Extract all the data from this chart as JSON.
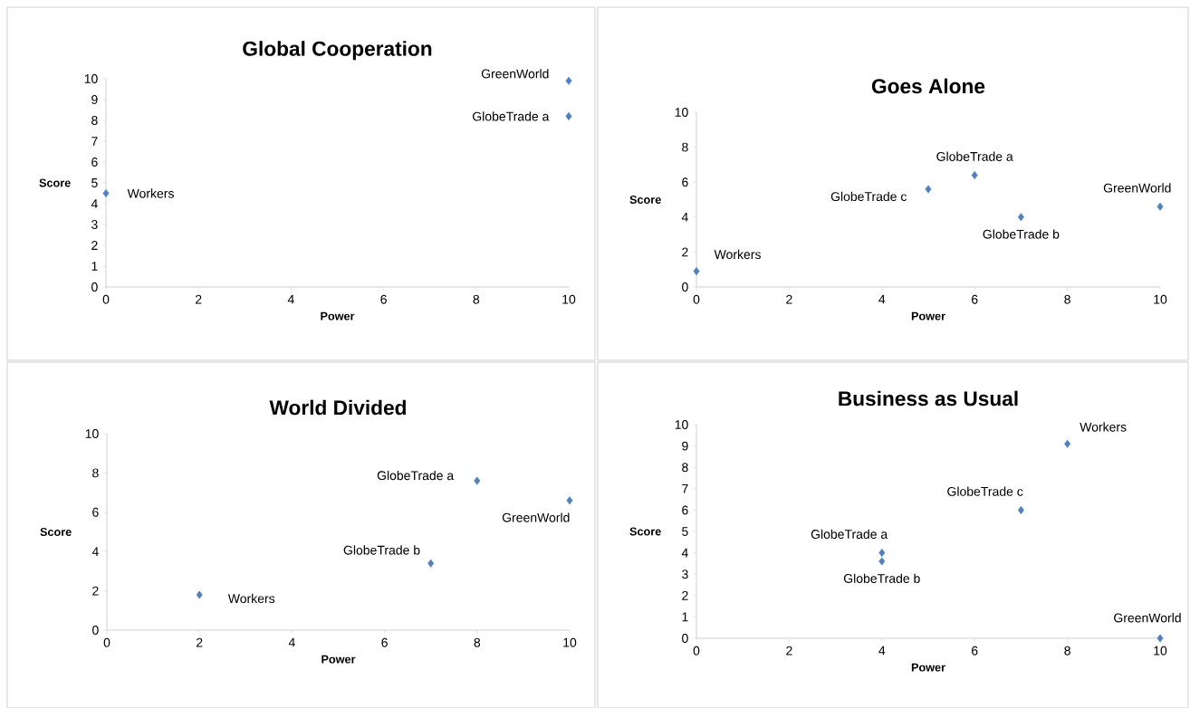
{
  "chart_data": [
    {
      "type": "scatter",
      "title": "Global Cooperation",
      "xlabel": "Power",
      "ylabel": "Score",
      "xlim": [
        0,
        10
      ],
      "ylim": [
        0,
        10
      ],
      "xticks": [
        0,
        2,
        4,
        6,
        8,
        10
      ],
      "yticks": [
        0,
        1,
        2,
        3,
        4,
        5,
        6,
        7,
        8,
        9,
        10
      ],
      "marker": "diamond",
      "color": "#4f81bd",
      "x": [
        0,
        10,
        10
      ],
      "values": [
        4.5,
        9.9,
        8.2
      ],
      "annotations": [
        {
          "text": "Workers",
          "x": 0,
          "y": 4.5
        },
        {
          "text": "GreenWorld",
          "x": 10,
          "y": 9.9
        },
        {
          "text": "GlobeTrade a",
          "x": 10,
          "y": 8.2
        }
      ]
    },
    {
      "type": "scatter",
      "title": "Goes Alone",
      "xlabel": "Power",
      "ylabel": "Score",
      "xlim": [
        0,
        10
      ],
      "ylim": [
        0,
        10
      ],
      "xticks": [
        0,
        2,
        4,
        6,
        8,
        10
      ],
      "yticks": [
        0,
        2,
        4,
        6,
        8,
        10
      ],
      "marker": "diamond",
      "color": "#4f81bd",
      "x": [
        0,
        5,
        6,
        7,
        10
      ],
      "values": [
        0.9,
        5.6,
        6.4,
        4.0,
        4.6
      ],
      "annotations": [
        {
          "text": "Workers",
          "x": 0,
          "y": 0.9
        },
        {
          "text": "GlobeTrade c",
          "x": 5,
          "y": 5.6
        },
        {
          "text": "GlobeTrade a",
          "x": 6,
          "y": 6.4
        },
        {
          "text": "GlobeTrade b",
          "x": 7,
          "y": 4.0
        },
        {
          "text": "GreenWorld",
          "x": 10,
          "y": 4.6
        }
      ]
    },
    {
      "type": "scatter",
      "title": "World Divided",
      "xlabel": "Power",
      "ylabel": "Score",
      "xlim": [
        0,
        10
      ],
      "ylim": [
        0,
        10
      ],
      "xticks": [
        0,
        2,
        4,
        6,
        8,
        10
      ],
      "yticks": [
        0,
        2,
        4,
        6,
        8,
        10
      ],
      "marker": "diamond",
      "color": "#4f81bd",
      "x": [
        2,
        7,
        8,
        10
      ],
      "values": [
        1.8,
        3.4,
        7.6,
        6.6
      ],
      "annotations": [
        {
          "text": "Workers",
          "x": 2,
          "y": 1.8
        },
        {
          "text": "GlobeTrade b",
          "x": 7,
          "y": 3.4
        },
        {
          "text": "GlobeTrade a",
          "x": 8,
          "y": 7.6
        },
        {
          "text": "GreenWorld",
          "x": 10,
          "y": 6.6
        }
      ]
    },
    {
      "type": "scatter",
      "title": "Business as Usual",
      "xlabel": "Power",
      "ylabel": "Score",
      "xlim": [
        0,
        10
      ],
      "ylim": [
        0,
        10
      ],
      "xticks": [
        0,
        2,
        4,
        6,
        8,
        10
      ],
      "yticks": [
        0,
        1,
        2,
        3,
        4,
        5,
        6,
        7,
        8,
        9,
        10
      ],
      "marker": "diamond",
      "color": "#4f81bd",
      "x": [
        4,
        4,
        7,
        8,
        10
      ],
      "values": [
        4.0,
        3.6,
        6.0,
        9.1,
        0
      ],
      "annotations": [
        {
          "text": "GlobeTrade a",
          "x": 4,
          "y": 4.0
        },
        {
          "text": "GlobeTrade b",
          "x": 4,
          "y": 3.6
        },
        {
          "text": "GlobeTrade c",
          "x": 7,
          "y": 6.0
        },
        {
          "text": "Workers",
          "x": 8,
          "y": 9.1
        },
        {
          "text": "GreenWorld",
          "x": 10,
          "y": 0
        }
      ]
    }
  ]
}
